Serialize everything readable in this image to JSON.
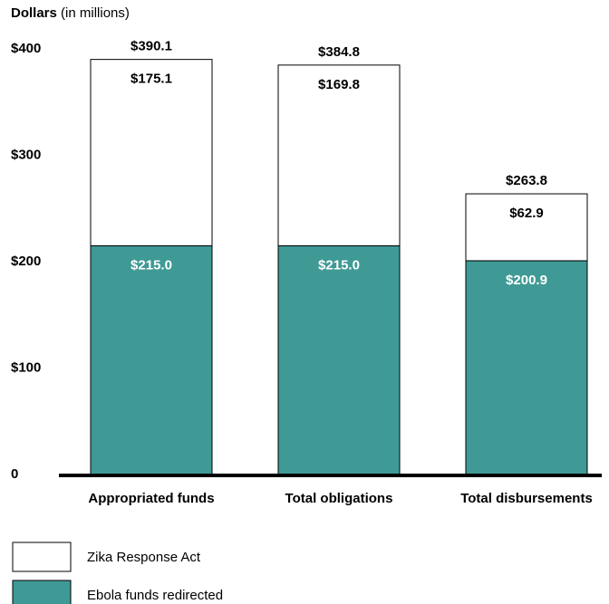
{
  "chart_data": {
    "type": "stacked_bar",
    "ylabel": "Dollars",
    "ylabel_note": "(in millions)",
    "categories": [
      "Appropriated funds",
      "Total obligations",
      "Total disbursements"
    ],
    "series": [
      {
        "name": "Ebola funds redirected",
        "color": "#3f9a96",
        "label_color": "#ffffff",
        "values": [
          215.0,
          215.0,
          200.9
        ],
        "value_labels": [
          "$215.0",
          "$215.0",
          "$200.9"
        ]
      },
      {
        "name": "Zika Response Act",
        "color": "#ffffff",
        "label_color": "#000000",
        "values": [
          175.1,
          169.8,
          62.9
        ],
        "value_labels": [
          "$175.1",
          "$169.8",
          "$62.9"
        ]
      }
    ],
    "totals": {
      "values": [
        390.1,
        384.8,
        263.8
      ],
      "value_labels": [
        "$390.1",
        "$384.8",
        "$263.8"
      ]
    },
    "ylim": [
      0,
      400
    ],
    "yticks": [
      0,
      {
        "value": 100,
        "label": "$100"
      },
      {
        "value": 200,
        "label": "$200"
      },
      {
        "value": 300,
        "label": "$300"
      },
      {
        "value": 400,
        "label": "$400"
      }
    ]
  }
}
